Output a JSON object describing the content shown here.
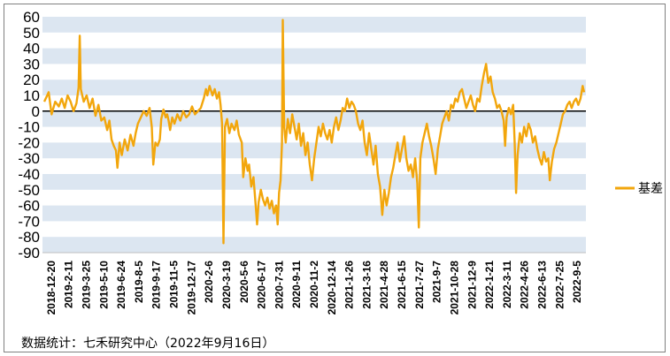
{
  "source_note": "数据统计：七禾研究中心（2022年9月16日）",
  "colors": {
    "series": "#F2A60C",
    "band": "#DCE6F1",
    "zero_line": "#000000"
  },
  "chart_data": {
    "type": "line",
    "legend_position": "right",
    "ylim": [
      -90,
      60
    ],
    "y_ticks": [
      60,
      50,
      40,
      30,
      20,
      10,
      0,
      -10,
      -20,
      -30,
      -40,
      -50,
      -60,
      -70,
      -80,
      -90
    ],
    "x_tick_labels": [
      "2018-12-20",
      "2019-2-11",
      "2019-3-25",
      "2019-5-10",
      "2019-6-24",
      "2019-8-5",
      "2019-9-17",
      "2019-11-5",
      "2019-12-17",
      "2020-2-6",
      "2020-3-19",
      "2020-5-6",
      "2020-6-17",
      "2020-7-31",
      "2020-9-11",
      "2020-11-2",
      "2020-12-14",
      "2021-1-26",
      "2021-3-16",
      "2021-4-28",
      "2021-6-15",
      "2021-7-27",
      "2021-9-7",
      "2021-10-28",
      "2021-12-9",
      "2022-1-21",
      "2022-3-11",
      "2022-4-26",
      "2022-6-13",
      "2022-7-25",
      "2022-9-5"
    ],
    "series": [
      {
        "name": "基差",
        "points": [
          [
            0.0,
            6
          ],
          [
            0.6,
            12
          ],
          [
            1.0,
            -2
          ],
          [
            1.5,
            6
          ],
          [
            2.0,
            3
          ],
          [
            2.4,
            8
          ],
          [
            2.8,
            2
          ],
          [
            3.2,
            10
          ],
          [
            3.6,
            6
          ],
          [
            4.0,
            0
          ],
          [
            4.4,
            5
          ],
          [
            4.7,
            15
          ],
          [
            4.85,
            48
          ],
          [
            5.0,
            14
          ],
          [
            5.4,
            6
          ],
          [
            5.8,
            10
          ],
          [
            6.2,
            2
          ],
          [
            6.6,
            8
          ],
          [
            7.0,
            -3
          ],
          [
            7.4,
            4
          ],
          [
            7.8,
            -6
          ],
          [
            8.2,
            -4
          ],
          [
            8.6,
            -12
          ],
          [
            8.9,
            -6
          ],
          [
            9.2,
            -18
          ],
          [
            9.5,
            -22
          ],
          [
            9.8,
            -25
          ],
          [
            10.0,
            -36
          ],
          [
            10.3,
            -20
          ],
          [
            10.6,
            -28
          ],
          [
            11.0,
            -18
          ],
          [
            11.4,
            -25
          ],
          [
            11.8,
            -15
          ],
          [
            12.2,
            -22
          ],
          [
            12.5,
            -14
          ],
          [
            12.8,
            -8
          ],
          [
            13.2,
            -4
          ],
          [
            13.6,
            0
          ],
          [
            14.0,
            -3
          ],
          [
            14.4,
            2
          ],
          [
            14.7,
            -10
          ],
          [
            14.9,
            -34
          ],
          [
            15.2,
            -20
          ],
          [
            15.5,
            -22
          ],
          [
            15.8,
            -18
          ],
          [
            16.0,
            -5
          ],
          [
            16.3,
            1
          ],
          [
            16.6,
            -4
          ],
          [
            16.8,
            -2
          ],
          [
            17.0,
            -6
          ],
          [
            17.2,
            -12
          ],
          [
            17.5,
            -4
          ],
          [
            17.8,
            -8
          ],
          [
            18.2,
            -2
          ],
          [
            18.6,
            -6
          ],
          [
            19.0,
            0
          ],
          [
            19.4,
            -4
          ],
          [
            19.8,
            -2
          ],
          [
            20.2,
            3
          ],
          [
            20.6,
            -2
          ],
          [
            21.0,
            0
          ],
          [
            21.4,
            2
          ],
          [
            21.8,
            8
          ],
          [
            22.1,
            14
          ],
          [
            22.3,
            10
          ],
          [
            22.6,
            16
          ],
          [
            23.0,
            10
          ],
          [
            23.3,
            14
          ],
          [
            23.6,
            8
          ],
          [
            23.9,
            12
          ],
          [
            24.1,
            4
          ],
          [
            24.3,
            -8
          ],
          [
            24.5,
            -84
          ],
          [
            24.7,
            -10
          ],
          [
            25.0,
            -5
          ],
          [
            25.3,
            -14
          ],
          [
            25.6,
            -8
          ],
          [
            26.0,
            -12
          ],
          [
            26.3,
            -6
          ],
          [
            26.6,
            -15
          ],
          [
            27.0,
            -20
          ],
          [
            27.2,
            -42
          ],
          [
            27.5,
            -30
          ],
          [
            27.8,
            -38
          ],
          [
            28.0,
            -34
          ],
          [
            28.3,
            -48
          ],
          [
            28.6,
            -42
          ],
          [
            28.9,
            -60
          ],
          [
            29.1,
            -72
          ],
          [
            29.3,
            -58
          ],
          [
            29.6,
            -50
          ],
          [
            29.9,
            -56
          ],
          [
            30.2,
            -60
          ],
          [
            30.5,
            -55
          ],
          [
            30.8,
            -62
          ],
          [
            31.1,
            -57
          ],
          [
            31.4,
            -65
          ],
          [
            31.7,
            -60
          ],
          [
            31.9,
            -72
          ],
          [
            32.1,
            -52
          ],
          [
            32.3,
            -44
          ],
          [
            32.5,
            -20
          ],
          [
            32.6,
            58
          ],
          [
            32.8,
            -10
          ],
          [
            33.0,
            -20
          ],
          [
            33.3,
            -5
          ],
          [
            33.6,
            -14
          ],
          [
            33.9,
            -2
          ],
          [
            34.2,
            -10
          ],
          [
            34.5,
            -18
          ],
          [
            34.8,
            -8
          ],
          [
            35.1,
            -22
          ],
          [
            35.4,
            -14
          ],
          [
            35.7,
            -28
          ],
          [
            36.0,
            -20
          ],
          [
            36.3,
            -34
          ],
          [
            36.6,
            -44
          ],
          [
            36.9,
            -30
          ],
          [
            37.2,
            -20
          ],
          [
            37.5,
            -10
          ],
          [
            37.8,
            -16
          ],
          [
            38.1,
            -8
          ],
          [
            38.4,
            -14
          ],
          [
            38.7,
            -18
          ],
          [
            39.0,
            -12
          ],
          [
            39.3,
            -20
          ],
          [
            39.6,
            -10
          ],
          [
            39.9,
            -4
          ],
          [
            40.2,
            -12
          ],
          [
            40.5,
            -6
          ],
          [
            40.8,
            2
          ],
          [
            41.1,
            0
          ],
          [
            41.4,
            8
          ],
          [
            41.7,
            2
          ],
          [
            42.0,
            6
          ],
          [
            42.3,
            4
          ],
          [
            42.6,
            0
          ],
          [
            42.9,
            -8
          ],
          [
            43.2,
            -12
          ],
          [
            43.5,
            -6
          ],
          [
            43.8,
            -20
          ],
          [
            44.1,
            -28
          ],
          [
            44.4,
            -14
          ],
          [
            44.7,
            -24
          ],
          [
            45.0,
            -34
          ],
          [
            45.3,
            -22
          ],
          [
            45.6,
            -40
          ],
          [
            45.9,
            -48
          ],
          [
            46.2,
            -66
          ],
          [
            46.5,
            -50
          ],
          [
            46.8,
            -60
          ],
          [
            47.1,
            -52
          ],
          [
            47.4,
            -42
          ],
          [
            47.7,
            -36
          ],
          [
            48.0,
            -28
          ],
          [
            48.3,
            -20
          ],
          [
            48.6,
            -32
          ],
          [
            48.9,
            -24
          ],
          [
            49.2,
            -16
          ],
          [
            49.5,
            -30
          ],
          [
            49.8,
            -38
          ],
          [
            50.1,
            -34
          ],
          [
            50.4,
            -42
          ],
          [
            50.7,
            -30
          ],
          [
            51.0,
            -46
          ],
          [
            51.2,
            -74
          ],
          [
            51.4,
            -30
          ],
          [
            51.7,
            -20
          ],
          [
            52.0,
            -14
          ],
          [
            52.3,
            -8
          ],
          [
            52.6,
            -16
          ],
          [
            52.9,
            -22
          ],
          [
            53.2,
            -30
          ],
          [
            53.5,
            -40
          ],
          [
            53.8,
            -24
          ],
          [
            54.1,
            -16
          ],
          [
            54.4,
            -8
          ],
          [
            54.7,
            -4
          ],
          [
            55.0,
            0
          ],
          [
            55.3,
            -6
          ],
          [
            55.6,
            4
          ],
          [
            55.9,
            2
          ],
          [
            56.2,
            8
          ],
          [
            56.5,
            6
          ],
          [
            56.8,
            12
          ],
          [
            57.1,
            14
          ],
          [
            57.4,
            8
          ],
          [
            57.7,
            2
          ],
          [
            58.0,
            6
          ],
          [
            58.3,
            10
          ],
          [
            58.6,
            4
          ],
          [
            58.9,
            0
          ],
          [
            59.2,
            8
          ],
          [
            59.5,
            6
          ],
          [
            59.8,
            16
          ],
          [
            60.1,
            24
          ],
          [
            60.4,
            30
          ],
          [
            60.7,
            18
          ],
          [
            61.0,
            22
          ],
          [
            61.3,
            12
          ],
          [
            61.6,
            8
          ],
          [
            61.9,
            2
          ],
          [
            62.2,
            4
          ],
          [
            62.5,
            0
          ],
          [
            62.8,
            -6
          ],
          [
            63.0,
            -22
          ],
          [
            63.2,
            -4
          ],
          [
            63.5,
            2
          ],
          [
            63.8,
            -2
          ],
          [
            64.1,
            4
          ],
          [
            64.3,
            -20
          ],
          [
            64.5,
            -52
          ],
          [
            64.7,
            -28
          ],
          [
            65.0,
            -14
          ],
          [
            65.3,
            -20
          ],
          [
            65.6,
            -10
          ],
          [
            65.9,
            -16
          ],
          [
            66.2,
            -8
          ],
          [
            66.5,
            -12
          ],
          [
            66.8,
            -20
          ],
          [
            67.1,
            -16
          ],
          [
            67.4,
            -24
          ],
          [
            67.7,
            -30
          ],
          [
            68.0,
            -34
          ],
          [
            68.3,
            -26
          ],
          [
            68.6,
            -32
          ],
          [
            68.9,
            -30
          ],
          [
            69.1,
            -44
          ],
          [
            69.4,
            -32
          ],
          [
            69.7,
            -24
          ],
          [
            70.0,
            -20
          ],
          [
            70.3,
            -14
          ],
          [
            70.6,
            -8
          ],
          [
            70.9,
            -2
          ],
          [
            71.2,
            0
          ],
          [
            71.5,
            4
          ],
          [
            71.8,
            6
          ],
          [
            72.1,
            2
          ],
          [
            72.4,
            6
          ],
          [
            72.7,
            8
          ],
          [
            73.0,
            4
          ],
          [
            73.3,
            8
          ],
          [
            73.6,
            16
          ],
          [
            73.8,
            12
          ]
        ]
      }
    ]
  }
}
